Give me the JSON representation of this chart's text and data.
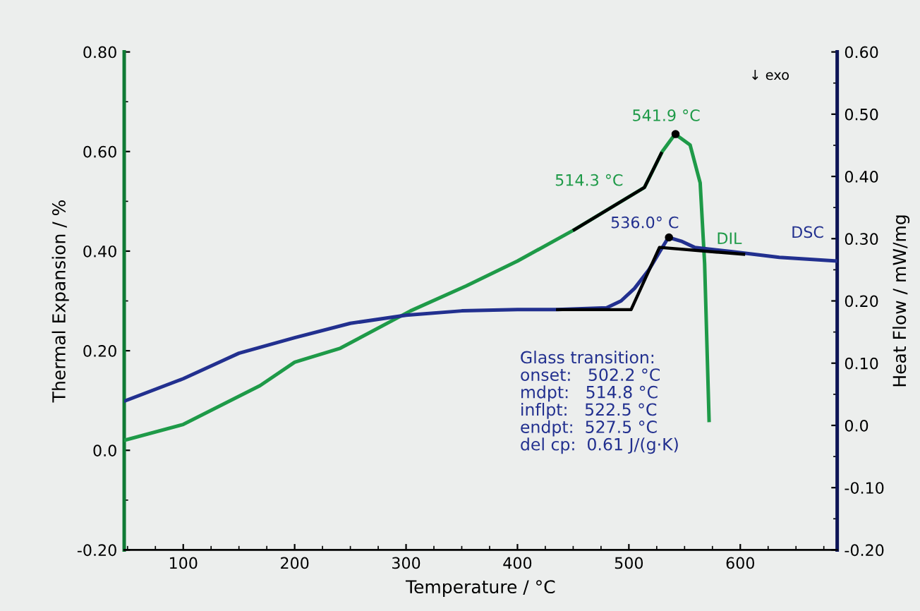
{
  "chart_data": {
    "type": "line",
    "xlabel": "Temperature / °C",
    "ylabel": "Thermal Expansion / %",
    "y2label": "Heat Flow / mW/mg",
    "xlim": [
      47,
      687
    ],
    "xticks": [
      100,
      200,
      300,
      400,
      500,
      600
    ],
    "ylim": [
      -0.2,
      0.8
    ],
    "yticks": [
      {
        "value": -0.2,
        "label": "-0.20"
      },
      {
        "value": 0,
        "label": "0.0"
      },
      {
        "value": 0.2,
        "label": "0.20"
      },
      {
        "value": 0.4,
        "label": "0.40"
      },
      {
        "value": 0.6,
        "label": "0.60"
      },
      {
        "value": 0.8,
        "label": "0.80"
      }
    ],
    "y2lim": [
      -0.2,
      0.6
    ],
    "y2ticks": [
      {
        "value": -0.2,
        "label": "-0.20"
      },
      {
        "value": -0.1,
        "label": "-0.10"
      },
      {
        "value": 0,
        "label": "0.0"
      },
      {
        "value": 0.1,
        "label": "0.10"
      },
      {
        "value": 0.2,
        "label": "0.20"
      },
      {
        "value": 0.3,
        "label": "0.30"
      },
      {
        "value": 0.4,
        "label": "0.40"
      },
      {
        "value": 0.5,
        "label": "0.50"
      },
      {
        "value": 0.6,
        "label": "0.60"
      }
    ],
    "grid": false,
    "legend": false,
    "series": [
      {
        "name": "DIL",
        "color": "#1e9a48",
        "x": [
          47,
          100,
          169,
          200,
          241,
          304,
          354,
          400,
          451,
          514,
          530,
          541.5,
          555,
          564,
          568,
          572
        ],
        "values": [
          0.02,
          0.052,
          0.13,
          0.177,
          0.205,
          0.28,
          0.33,
          0.38,
          0.443,
          0.528,
          0.6,
          0.635,
          0.613,
          0.537,
          0.375,
          0.06
        ]
      },
      {
        "name": "DSC",
        "color": "#22308f",
        "axis": "y2",
        "x": [
          47,
          100,
          150,
          200,
          250,
          300,
          350,
          400,
          436,
          480,
          493,
          505,
          518,
          528,
          535.5,
          547,
          559,
          593,
          635,
          687
        ],
        "values": [
          0.039,
          0.075,
          0.116,
          0.141,
          0.164,
          0.177,
          0.184,
          0.186,
          0.186,
          0.189,
          0.2,
          0.22,
          0.25,
          0.28,
          0.302,
          0.296,
          0.286,
          0.279,
          0.27,
          0.264
        ]
      },
      {
        "type": "line",
        "color": "#000000",
        "x": [
          451,
          514,
          529
        ],
        "values": [
          0.443,
          0.528,
          0.596
        ]
      },
      {
        "type": "line",
        "color": "#000000",
        "axis": "y2",
        "x": [
          436,
          502,
          527.5,
          603
        ],
        "values": [
          0.186,
          0.186,
          0.286,
          0.275
        ]
      },
      {
        "type": "scatter",
        "color": "#000000",
        "x": [
          541.9
        ],
        "values": [
          0.635
        ]
      },
      {
        "type": "scatter",
        "color": "#000000",
        "axis": "y2",
        "x": [
          536.0
        ],
        "values": [
          0.302
        ]
      }
    ],
    "annotations": [
      "541.9 °C",
      "514.3 °C",
      "536.0° C",
      "↓ exo",
      "Glass transition:\nonset:   502.2 °C\nmdpt:   514.8 °C\ninflpt:   522.5 °C\nendpt:  527.5 °C\ndel cp:  0.61 J/(g·K)"
    ]
  }
}
